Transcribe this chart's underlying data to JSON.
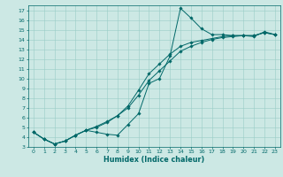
{
  "xlabel": "Humidex (Indice chaleur)",
  "bg_color": "#cce8e4",
  "grid_color": "#99ccc6",
  "line_color": "#006868",
  "spine_color": "#006868",
  "xlim": [
    -0.5,
    23.5
  ],
  "ylim": [
    3,
    17.5
  ],
  "xticks": [
    0,
    1,
    2,
    3,
    4,
    5,
    6,
    7,
    8,
    9,
    10,
    11,
    12,
    13,
    14,
    15,
    16,
    17,
    18,
    19,
    20,
    21,
    22,
    23
  ],
  "yticks": [
    3,
    4,
    5,
    6,
    7,
    8,
    9,
    10,
    11,
    12,
    13,
    14,
    15,
    16,
    17
  ],
  "line1_x": [
    0,
    1,
    2,
    3,
    4,
    5,
    6,
    7,
    8,
    9,
    10,
    11,
    12,
    13,
    14,
    15,
    16,
    17,
    18,
    19,
    20,
    21,
    22,
    23
  ],
  "line1_y": [
    4.5,
    3.8,
    3.3,
    3.6,
    4.2,
    4.7,
    4.5,
    4.3,
    4.2,
    5.3,
    6.4,
    9.5,
    10.0,
    12.3,
    17.2,
    16.2,
    15.1,
    14.5,
    14.5,
    14.4,
    14.4,
    14.3,
    14.8,
    14.5
  ],
  "line2_x": [
    0,
    1,
    2,
    3,
    4,
    5,
    6,
    7,
    8,
    9,
    10,
    11,
    12,
    13,
    14,
    15,
    16,
    17,
    18,
    19,
    20,
    21,
    22,
    23
  ],
  "line2_y": [
    4.5,
    3.8,
    3.3,
    3.6,
    4.2,
    4.7,
    5.0,
    5.5,
    6.2,
    7.2,
    8.8,
    10.5,
    11.5,
    12.5,
    13.3,
    13.7,
    13.9,
    14.1,
    14.3,
    14.4,
    14.4,
    14.4,
    14.7,
    14.5
  ],
  "line3_x": [
    0,
    1,
    2,
    3,
    4,
    5,
    6,
    7,
    8,
    9,
    10,
    11,
    12,
    13,
    14,
    15,
    16,
    17,
    18,
    19,
    20,
    21,
    22,
    23
  ],
  "line3_y": [
    4.5,
    3.8,
    3.3,
    3.6,
    4.2,
    4.7,
    5.1,
    5.6,
    6.2,
    7.0,
    8.3,
    9.8,
    10.8,
    11.8,
    12.8,
    13.3,
    13.7,
    14.0,
    14.2,
    14.3,
    14.4,
    14.4,
    14.7,
    14.5
  ],
  "tick_fontsize": 4.5,
  "xlabel_fontsize": 5.8,
  "marker_size": 1.8,
  "line_width": 0.7
}
